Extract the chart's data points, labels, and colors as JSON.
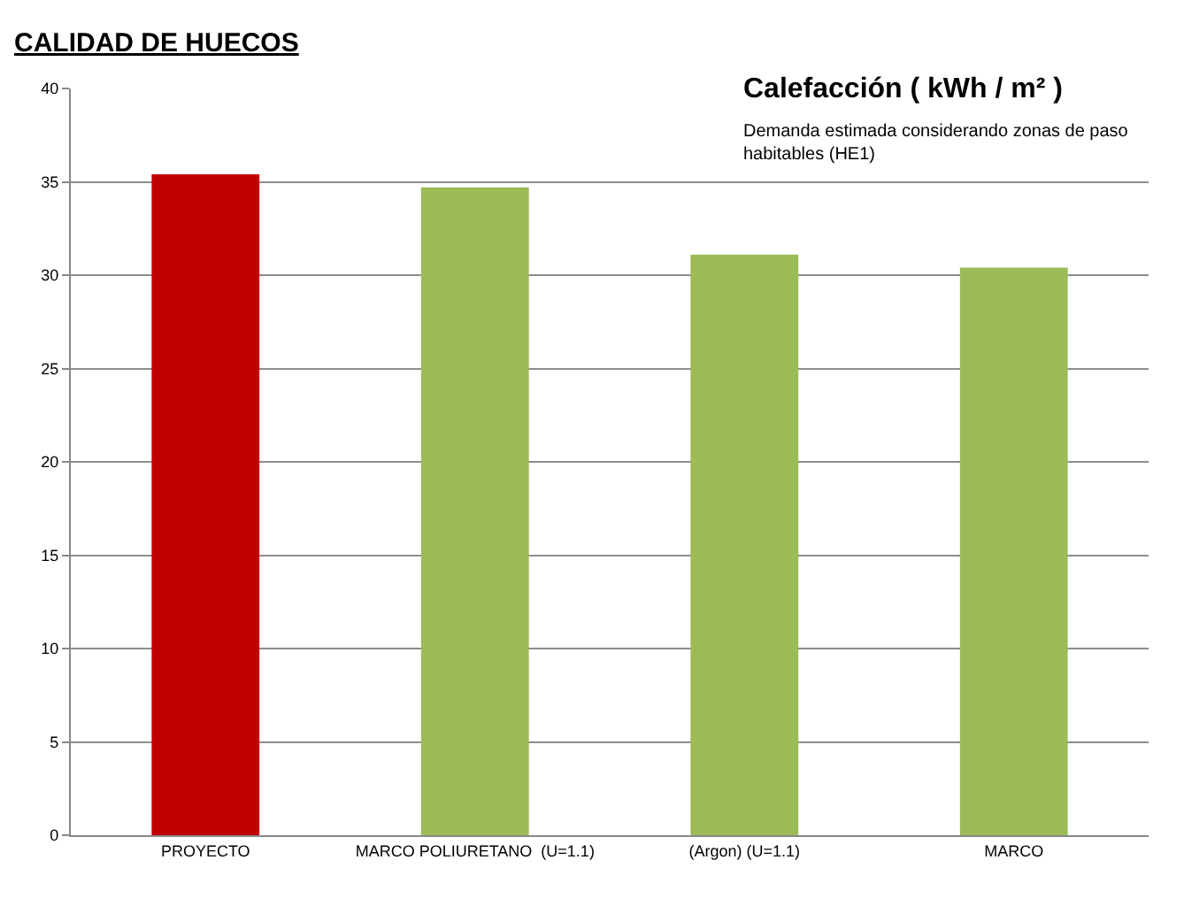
{
  "chart_data": {
    "type": "bar",
    "title": "CALIDAD DE HUECOS",
    "subtitle": "Calefacción ( kWh / m² )",
    "annotations": [
      "Demanda estimada considerando zonas de paso habitables (HE1)"
    ],
    "categories": [
      "PROYECTO",
      "MARCO POLIURETANO  (U=1.1)",
      "(Argon) (U=1.1)",
      "MARCO"
    ],
    "values": [
      35.4,
      34.7,
      31.1,
      30.4
    ],
    "colors": [
      "#c00000",
      "#9bbb59",
      "#9bbb59",
      "#9bbb59"
    ],
    "ylim": [
      0,
      40
    ],
    "yticks": [
      0,
      5,
      10,
      15,
      20,
      25,
      30,
      35,
      40
    ],
    "grid": "y"
  }
}
